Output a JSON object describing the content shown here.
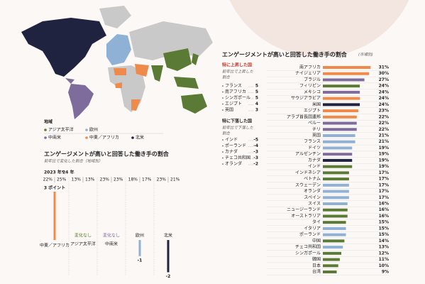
{
  "map": {
    "legend_title": "地域",
    "regions": [
      {
        "name": "アジア太平洋",
        "color": "#5b7a35"
      },
      {
        "name": "欧州",
        "color": "#8fb1d6"
      },
      {
        "name": "中南米",
        "color": "#7d6c9c"
      },
      {
        "name": "中東／アフリカ",
        "color": "#f08a4b"
      },
      {
        "name": "北米",
        "color": "#1f2340"
      }
    ]
  },
  "chart_data": [
    {
      "type": "bar",
      "orientation": "vertical",
      "title": "エンゲージメントが高いと回答した働き手の割合",
      "subtitle": "前年比で変化した割合（地域別）",
      "years": [
        "2023 年*",
        "24 年"
      ],
      "categories": [
        "中東／アフリカ",
        "アジア太平洋",
        "中南米",
        "欧州",
        "北米"
      ],
      "previous": {
        "values": [
          22,
          13,
          23,
          18,
          23
        ],
        "value_labels": [
          "22%",
          "13%",
          "23%",
          "18%",
          "23%"
        ]
      },
      "current": {
        "values": [
          25,
          13,
          23,
          17,
          21
        ],
        "value_labels": [
          "25%",
          "13%",
          "23%",
          "17%",
          "21%"
        ]
      },
      "values": [
        3,
        0,
        0,
        -1,
        -2
      ],
      "value_labels": [
        "3 ポイント",
        "変化なし",
        "変化なし",
        "-1",
        "-2"
      ],
      "colors": [
        "#f08a4b",
        "#5b7a35",
        "#7d6c9c",
        "#8fb1d6",
        "#1f2340"
      ],
      "ylim": [
        -2.2,
        3
      ]
    },
    {
      "type": "bar",
      "orientation": "horizontal",
      "title": "エンゲージメントが高いと回答した働き手の割合",
      "note": "(市場別)",
      "categories": [
        "南アフリカ",
        "ナイジェリア",
        "ブラジル",
        "フィリピン",
        "メキシコ",
        "サウジアラビア",
        "米国",
        "エジプト",
        "アラブ首長国連邦",
        "ペルー",
        "チリ",
        "英国",
        "フランス",
        "ドイツ",
        "アルゼンチン",
        "カナダ",
        "インド",
        "インドネシア",
        "ベトナム",
        "スウェーデン",
        "オランダ",
        "スペイン",
        "スイス",
        "ニュージーランド",
        "オーストラリア",
        "タイ",
        "イタリア",
        "ポーランド",
        "中国",
        "チェコ共和国",
        "シンガポール",
        "韓国",
        "日本",
        "台湾"
      ],
      "values": [
        31,
        30,
        27,
        24,
        24,
        24,
        24,
        23,
        22,
        22,
        22,
        21,
        21,
        19,
        19,
        19,
        19,
        17,
        17,
        17,
        17,
        17,
        16,
        16,
        16,
        15,
        15,
        15,
        14,
        13,
        12,
        11,
        10,
        9
      ],
      "value_labels": [
        "31%",
        "30%",
        "27%",
        "24%",
        "24%",
        "24%",
        "24%",
        "23%",
        "22%",
        "22%",
        "22%",
        "21%",
        "21%",
        "19%",
        "19%",
        "19%",
        "19%",
        "17%",
        "17%",
        "17%",
        "17%",
        "17%",
        "16%",
        "16%",
        "16%",
        "15%",
        "15%",
        "15%",
        "14%",
        "13%",
        "12%",
        "11%",
        "10%",
        "9%"
      ],
      "colors": [
        "#f08a4b",
        "#f08a4b",
        "#7d6c9c",
        "#5b7a35",
        "#7d6c9c",
        "#f08a4b",
        "#1f2340",
        "#f08a4b",
        "#f08a4b",
        "#7d6c9c",
        "#7d6c9c",
        "#8fb1d6",
        "#8fb1d6",
        "#8fb1d6",
        "#7d6c9c",
        "#1f2340",
        "#5b7a35",
        "#5b7a35",
        "#5b7a35",
        "#8fb1d6",
        "#8fb1d6",
        "#8fb1d6",
        "#8fb1d6",
        "#5b7a35",
        "#5b7a35",
        "#5b7a35",
        "#8fb1d6",
        "#8fb1d6",
        "#5b7a35",
        "#8fb1d6",
        "#5b7a35",
        "#5b7a35",
        "#5b7a35",
        "#5b7a35"
      ],
      "xlim": [
        0,
        35
      ]
    }
  ],
  "risers": {
    "title": "特に上昇した国",
    "subtitle": [
      "前年比で上昇した",
      "割合"
    ],
    "items": [
      {
        "name": "フランス",
        "value": 5
      },
      {
        "name": "南アフリカ",
        "value": 5
      },
      {
        "name": "シンガポール",
        "value": 5
      },
      {
        "name": "エジプト",
        "value": 4
      },
      {
        "name": "英国",
        "value": 3
      }
    ]
  },
  "fallers": {
    "title": "特に下落した国",
    "subtitle": [
      "前年比で下落した",
      "割合"
    ],
    "items": [
      {
        "name": "インド",
        "value": -5
      },
      {
        "name": "ポーランド",
        "value": -4
      },
      {
        "name": "カナダ",
        "value": -3
      },
      {
        "name": "チェコ共和国",
        "value": -3
      },
      {
        "name": "オランダ",
        "value": -2
      }
    ]
  }
}
